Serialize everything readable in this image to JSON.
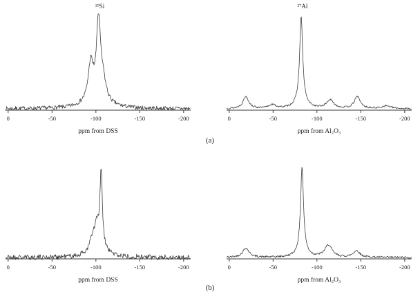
{
  "figure": {
    "background": "#ffffff",
    "line_color": "#3a3a3a",
    "text_color": "#222222",
    "panel_labels": {
      "a": "(a)",
      "b": "(b)"
    }
  },
  "chart_data": [
    {
      "id": "si-29-spectrum-a",
      "panel": "a",
      "type": "line",
      "title": "²⁹Si",
      "xlabel": "ppm from DSS",
      "x_range": [
        0,
        -200
      ],
      "x_axis_reversed": true,
      "x_ticks": [
        0,
        -50,
        -100,
        -150,
        -200
      ],
      "grid": false,
      "legend": false,
      "peaks": [
        {
          "center": -94,
          "height": 0.36,
          "width": 3.2
        },
        {
          "center": -103,
          "height": 0.82,
          "width": 2.4
        },
        {
          "center": -108,
          "height": 0.2,
          "width": 4.0
        },
        {
          "center": -100,
          "height": 0.17,
          "width": 11.0
        }
      ],
      "noise": 0.022,
      "seed": 7
    },
    {
      "id": "al-27-spectrum-a",
      "panel": "a",
      "type": "line",
      "title": "²⁷Al",
      "xlabel": "ppm from Al₂O₃",
      "x_range": [
        0,
        -200
      ],
      "x_axis_reversed": true,
      "x_ticks": [
        0,
        -50,
        -100,
        -150,
        -200
      ],
      "grid": false,
      "legend": false,
      "peaks": [
        {
          "center": -82,
          "height": 0.86,
          "width": 1.9
        },
        {
          "center": -82,
          "height": 0.14,
          "width": 5.5
        },
        {
          "center": -19,
          "height": 0.13,
          "width": 4.0
        },
        {
          "center": -49,
          "height": 0.04,
          "width": 5.0
        },
        {
          "center": -115,
          "height": 0.09,
          "width": 5.0
        },
        {
          "center": -146,
          "height": 0.13,
          "width": 4.0
        },
        {
          "center": -179,
          "height": 0.03,
          "width": 6.0
        }
      ],
      "noise": 0.009,
      "seed": 13
    },
    {
      "id": "si-29-spectrum-b",
      "panel": "b",
      "type": "line",
      "title": "",
      "xlabel": "ppm from DSS",
      "x_range": [
        0,
        -200
      ],
      "x_axis_reversed": true,
      "x_ticks": [
        0,
        -50,
        -100,
        -150,
        -200
      ],
      "grid": false,
      "legend": false,
      "peaks": [
        {
          "center": -106,
          "height": 0.8,
          "width": 1.6
        },
        {
          "center": -101,
          "height": 0.22,
          "width": 3.0
        },
        {
          "center": -96,
          "height": 0.12,
          "width": 4.0
        },
        {
          "center": -103,
          "height": 0.1,
          "width": 10.0
        }
      ],
      "noise": 0.028,
      "seed": 21
    },
    {
      "id": "al-27-spectrum-b",
      "panel": "b",
      "type": "line",
      "title": "",
      "xlabel": "ppm from Al₂O₃",
      "x_range": [
        0,
        -200
      ],
      "x_axis_reversed": true,
      "x_ticks": [
        0,
        -50,
        -100,
        -150,
        -200
      ],
      "grid": false,
      "legend": false,
      "peaks": [
        {
          "center": -83,
          "height": 0.88,
          "width": 1.9
        },
        {
          "center": -83,
          "height": 0.1,
          "width": 5.5
        },
        {
          "center": -19,
          "height": 0.1,
          "width": 4.5
        },
        {
          "center": -113,
          "height": 0.13,
          "width": 5.0
        },
        {
          "center": -145,
          "height": 0.07,
          "width": 4.5
        }
      ],
      "noise": 0.011,
      "seed": 42
    }
  ]
}
